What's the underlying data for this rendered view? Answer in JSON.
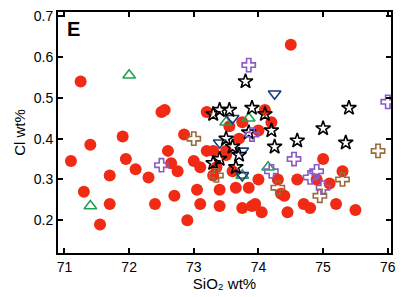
{
  "chart_data": {
    "type": "scatter",
    "title": "E",
    "x_label": "SiO₂ wt%",
    "y_label": "Cl wt%",
    "xlim": [
      70.9,
      76.05
    ],
    "xticks": [
      71,
      72,
      73,
      74,
      75,
      76
    ],
    "ylim": [
      0.12,
      0.71
    ],
    "yticks": [
      0.2,
      0.3,
      0.4,
      0.5,
      0.6,
      0.7
    ],
    "grid": false,
    "series": [
      {
        "color": "#f02a14",
        "marker": "circle",
        "x": [
          71.1,
          71.25,
          71.3,
          71.4,
          71.55,
          71.7,
          71.7,
          71.9,
          71.95,
          72.1,
          72.3,
          72.4,
          72.5,
          72.55,
          72.65,
          72.6,
          72.7,
          72.75,
          72.85,
          72.9,
          73.0,
          73.05,
          73.1,
          73.2,
          73.2,
          73.3,
          73.3,
          73.35,
          73.4,
          73.4,
          73.5,
          73.5,
          73.55,
          73.6,
          73.65,
          73.7,
          73.75,
          73.75,
          73.85,
          73.9,
          74.0,
          74.0,
          74.05,
          74.1,
          74.2,
          74.3,
          74.35,
          74.4,
          74.45,
          74.5,
          74.6,
          74.7,
          74.8,
          75.0,
          75.1,
          75.2,
          75.3,
          75.5,
          74.9,
          73.95,
          73.1
        ],
        "y": [
          0.345,
          0.54,
          0.27,
          0.385,
          0.19,
          0.24,
          0.31,
          0.405,
          0.35,
          0.325,
          0.305,
          0.24,
          0.465,
          0.47,
          0.34,
          0.37,
          0.26,
          0.32,
          0.41,
          0.2,
          0.345,
          0.275,
          0.24,
          0.465,
          0.37,
          0.31,
          0.37,
          0.33,
          0.275,
          0.235,
          0.36,
          0.37,
          0.43,
          0.32,
          0.28,
          0.4,
          0.44,
          0.23,
          0.28,
          0.235,
          0.42,
          0.3,
          0.22,
          0.47,
          0.44,
          0.3,
          0.265,
          0.26,
          0.22,
          0.63,
          0.3,
          0.24,
          0.23,
          0.35,
          0.29,
          0.24,
          0.32,
          0.225,
          0.3,
          0.24,
          0.33
        ]
      },
      {
        "color": "#22a050",
        "marker": "triangle-up-open",
        "x": [
          71.4,
          72.0,
          73.5,
          73.85,
          74.15,
          73.75
        ],
        "y": [
          0.235,
          0.555,
          0.44,
          0.45,
          0.33,
          0.31
        ]
      },
      {
        "color": "#1a3a7a",
        "marker": "triangle-down-open",
        "x": [
          73.6,
          73.75,
          73.75,
          74.25,
          73.4
        ],
        "y": [
          0.45,
          0.37,
          0.31,
          0.51,
          0.39
        ]
      },
      {
        "color": "#000000",
        "marker": "star-open",
        "x": [
          73.3,
          73.4,
          73.55,
          73.8,
          73.9,
          73.4,
          73.5,
          73.6,
          73.65,
          73.85,
          73.7,
          74.1,
          74.2,
          74.25,
          74.6,
          75.0,
          75.4,
          75.35,
          73.3
        ],
        "y": [
          0.46,
          0.47,
          0.47,
          0.54,
          0.475,
          0.35,
          0.4,
          0.38,
          0.33,
          0.415,
          0.36,
          0.46,
          0.42,
          0.38,
          0.395,
          0.425,
          0.475,
          0.39,
          0.34
        ]
      },
      {
        "color": "#8a5ac8",
        "marker": "cross-open",
        "x": [
          72.5,
          73.85,
          74.2,
          74.55,
          74.8,
          74.9,
          75.0,
          76.0,
          73.9
        ],
        "y": [
          0.335,
          0.58,
          0.32,
          0.35,
          0.305,
          0.32,
          0.28,
          0.49,
          0.41
        ]
      },
      {
        "color": "#9a6a3a",
        "marker": "cross-open",
        "x": [
          73.0,
          73.35,
          74.3,
          74.95,
          75.3,
          75.85
        ],
        "y": [
          0.4,
          0.31,
          0.28,
          0.26,
          0.3,
          0.37
        ]
      }
    ]
  }
}
